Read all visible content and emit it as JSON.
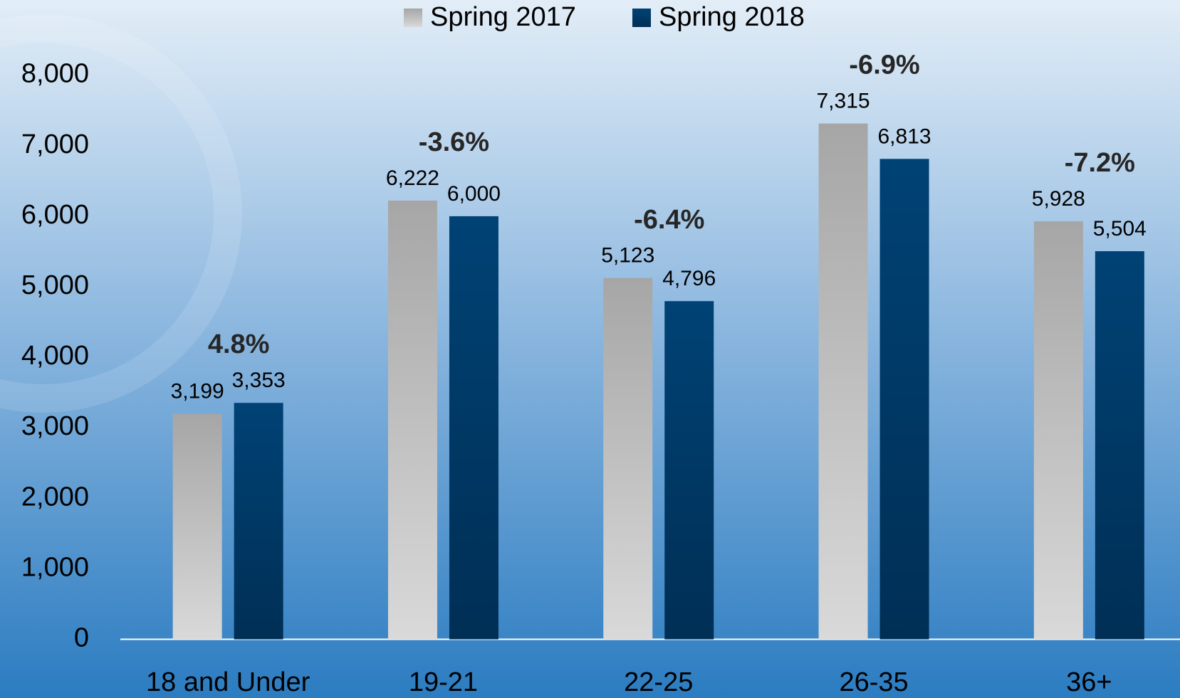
{
  "chart_data": {
    "type": "bar",
    "categories": [
      "18 and Under",
      "19-21",
      "22-25",
      "26-35",
      "36+"
    ],
    "series": [
      {
        "name": "Spring 2017",
        "color": "#a6a6a6",
        "values": [
          3199,
          6222,
          5123,
          7315,
          5928
        ],
        "value_labels": [
          "3,199",
          "6,222",
          "5,123",
          "7,315",
          "5,928"
        ]
      },
      {
        "name": "Spring 2018",
        "color": "#004275",
        "values": [
          3353,
          6000,
          4796,
          6813,
          5504
        ],
        "value_labels": [
          "3,353",
          "6,000",
          "4,796",
          "6,813",
          "5,504"
        ]
      }
    ],
    "annotations": [
      "4.8%",
      "-3.6%",
      "-6.4%",
      "-6.9%",
      "-7.2%"
    ],
    "ylim": [
      0,
      8000
    ],
    "yticks": [
      0,
      {
        "value": 1000,
        "label": "1,000"
      },
      {
        "value": 2000,
        "label": "2,000"
      },
      {
        "value": 3000,
        "label": "3,000"
      },
      {
        "value": 4000,
        "label": "4,000"
      },
      {
        "value": 5000,
        "label": "5,000"
      },
      {
        "value": 6000,
        "label": "6,000"
      },
      {
        "value": 7000,
        "label": "7,000"
      },
      {
        "value": 8000,
        "label": "8,000"
      }
    ],
    "grid": false,
    "legend": "top"
  }
}
